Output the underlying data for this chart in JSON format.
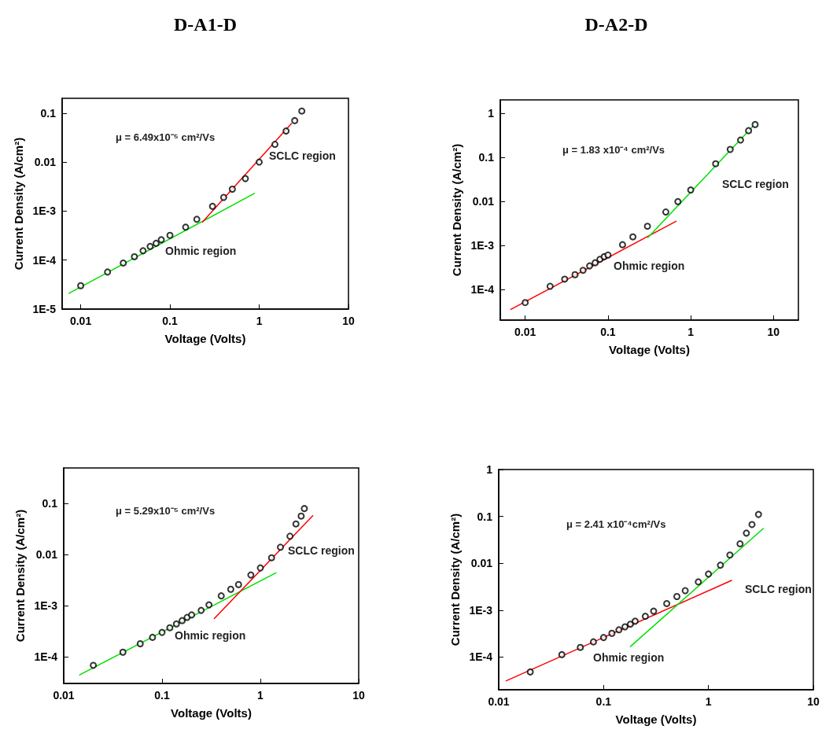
{
  "chart_data": [
    {
      "type": "scatter",
      "title": "D-A1-D",
      "xlabel": "Voltage (Volts)",
      "ylabel": "Current Density (A/cm²)",
      "annotations": [
        "μ = 6.49x10⁻⁵ cm²/Vs",
        "SCLC region",
        "Ohmic region"
      ],
      "log": "xy",
      "grid": false,
      "xlim": [
        0.0062,
        10
      ],
      "xticks": [
        0.01,
        0.1,
        1,
        10
      ],
      "ylim": [
        1e-05,
        0.2
      ],
      "yticks": [
        {
          "value": 1e-05,
          "label": "1E-5"
        },
        {
          "value": 0.0001,
          "label": "1E-4"
        },
        {
          "value": 0.001,
          "label": "1E-3"
        },
        0.01,
        0.1
      ],
      "series": [
        {
          "marker": "circle",
          "color": "#000000",
          "x": [
            0.01,
            0.02,
            0.03,
            0.04,
            0.05,
            0.06,
            0.07,
            0.08,
            0.1,
            0.15,
            0.2,
            0.3,
            0.4,
            0.5,
            0.7,
            1,
            1.5,
            2,
            2.5,
            3
          ],
          "values": [
            3e-05,
            5.7e-05,
            8.7e-05,
            0.000117,
            0.000155,
            0.00019,
            0.00022,
            0.00026,
            0.00032,
            0.00047,
            0.00068,
            0.00125,
            0.0019,
            0.0028,
            0.0046,
            0.01,
            0.023,
            0.043,
            0.07,
            0.11
          ]
        },
        {
          "type": "line",
          "marker": "none",
          "color": "#00e000",
          "x": [
            0.0074,
            0.885
          ],
          "values": [
            2.1e-05,
            0.0023
          ]
        },
        {
          "type": "line",
          "marker": "none",
          "color": "#ff0000",
          "x": [
            0.232,
            2.29
          ],
          "values": [
            0.0006,
            0.061
          ]
        }
      ]
    },
    {
      "type": "scatter",
      "title": "D-A2-D",
      "xlabel": "Voltage (Volts)",
      "ylabel": "Current Density (A/cm²)",
      "annotations": [
        "μ = 1.83 x10⁻⁴ cm²/Vs",
        "SCLC region",
        "Ohmic region"
      ],
      "log": "xy",
      "grid": false,
      "xlim": [
        0.005,
        20
      ],
      "xticks": [
        0.01,
        0.1,
        1,
        10
      ],
      "ylim": [
        2e-05,
        2
      ],
      "yticks": [
        {
          "value": 0.0001,
          "label": "1E-4"
        },
        {
          "value": 0.001,
          "label": "1E-3"
        },
        0.01,
        0.1,
        1
      ],
      "series": [
        {
          "marker": "circle",
          "color": "#000000",
          "x": [
            0.01,
            0.02,
            0.03,
            0.04,
            0.05,
            0.06,
            0.07,
            0.08,
            0.09,
            0.1,
            0.15,
            0.2,
            0.3,
            0.5,
            0.7,
            1,
            2,
            3,
            4,
            5,
            6
          ],
          "values": [
            5e-05,
            0.000117,
            0.00017,
            0.000215,
            0.00027,
            0.00034,
            0.0004,
            0.00048,
            0.00055,
            0.0006,
            0.00103,
            0.00155,
            0.0027,
            0.0057,
            0.0098,
            0.018,
            0.071,
            0.15,
            0.245,
            0.4,
            0.55
          ]
        },
        {
          "type": "line",
          "marker": "none",
          "color": "#ff0000",
          "x": [
            0.0067,
            0.665
          ],
          "values": [
            3.5e-05,
            0.0035
          ]
        },
        {
          "type": "line",
          "marker": "none",
          "color": "#00e000",
          "x": [
            0.304,
            5.75
          ],
          "values": [
            0.0015,
            0.52
          ]
        }
      ]
    },
    {
      "type": "scatter",
      "xlabel": "Voltage (Volts)",
      "ylabel": "Current Density (A/cm²)",
      "annotations": [
        "μ = 5.29x10⁻⁵ cm²/Vs",
        "SCLC region",
        "Ohmic region"
      ],
      "log": "xy",
      "grid": false,
      "xlim": [
        0.01,
        10
      ],
      "xticks": [
        0.01,
        0.1,
        1,
        10
      ],
      "ylim": [
        3e-05,
        0.5
      ],
      "yticks": [
        {
          "value": 0.0001,
          "label": "1E-4"
        },
        {
          "value": 0.001,
          "label": "1E-3"
        },
        0.01,
        0.1
      ],
      "series": [
        {
          "marker": "circle",
          "color": "#000000",
          "x": [
            0.02,
            0.04,
            0.06,
            0.08,
            0.1,
            0.12,
            0.14,
            0.16,
            0.18,
            0.2,
            0.25,
            0.3,
            0.4,
            0.5,
            0.6,
            0.8,
            1,
            1.3,
            1.6,
            2,
            2.3,
            2.6,
            2.8
          ],
          "values": [
            6.8e-05,
            0.000123,
            0.00018,
            0.00024,
            0.0003,
            0.00037,
            0.00044,
            0.00051,
            0.00059,
            0.00066,
            0.00081,
            0.00104,
            0.00156,
            0.0021,
            0.0026,
            0.004,
            0.0055,
            0.0087,
            0.014,
            0.023,
            0.04,
            0.057,
            0.08
          ]
        },
        {
          "type": "line",
          "marker": "none",
          "color": "#00e000",
          "x": [
            0.0145,
            1.44
          ],
          "values": [
            4.4e-05,
            0.0044
          ]
        },
        {
          "type": "line",
          "marker": "none",
          "color": "#ff0000",
          "x": [
            0.34,
            3.41
          ],
          "values": [
            0.00056,
            0.058
          ]
        }
      ]
    },
    {
      "type": "scatter",
      "xlabel": "Voltage (Volts)",
      "ylabel": "Current Density (A/cm²)",
      "annotations": [
        "μ = 2.41 x10⁻⁴cm²/Vs",
        "SCLC region",
        "Ohmic region"
      ],
      "log": "xy",
      "grid": false,
      "xlim": [
        0.01,
        10
      ],
      "xticks": [
        0.01,
        0.1,
        1,
        10
      ],
      "ylim": [
        2e-05,
        1
      ],
      "yticks": [
        {
          "value": 0.0001,
          "label": "1E-4"
        },
        {
          "value": 0.001,
          "label": "1E-3"
        },
        0.01,
        0.1,
        1
      ],
      "series": [
        {
          "marker": "circle",
          "color": "#000000",
          "x": [
            0.02,
            0.04,
            0.06,
            0.08,
            0.1,
            0.12,
            0.14,
            0.16,
            0.18,
            0.2,
            0.25,
            0.3,
            0.4,
            0.5,
            0.6,
            0.8,
            1,
            1.3,
            1.6,
            2,
            2.3,
            2.6,
            3
          ],
          "values": [
            4.8e-05,
            0.000112,
            0.00016,
            0.00021,
            0.00026,
            0.00032,
            0.00038,
            0.00044,
            0.0005,
            0.00058,
            0.00074,
            0.00095,
            0.00138,
            0.00195,
            0.0026,
            0.004,
            0.0059,
            0.0091,
            0.015,
            0.026,
            0.044,
            0.067,
            0.11
          ]
        },
        {
          "type": "line",
          "marker": "none",
          "color": "#ff0000",
          "x": [
            0.0118,
            1.66
          ],
          "values": [
            3.1e-05,
            0.0043
          ]
        },
        {
          "type": "line",
          "marker": "none",
          "color": "#00e000",
          "x": [
            0.18,
            3.33
          ],
          "values": [
            0.000167,
            0.055
          ]
        }
      ]
    }
  ]
}
